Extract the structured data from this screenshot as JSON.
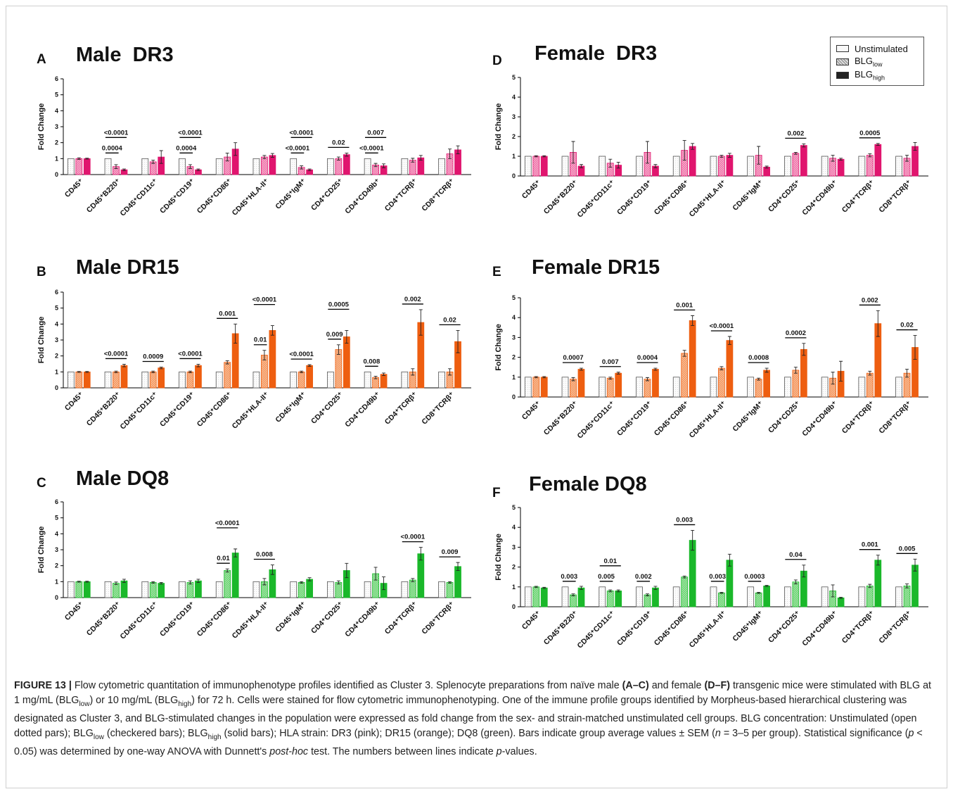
{
  "colors": {
    "pink": "#e0156e",
    "orange": "#ee5e10",
    "green": "#1ab82a"
  },
  "legend": {
    "unstimulated": "Unstimulated",
    "low_main": "BLG",
    "low_sub": "low",
    "high_main": "BLG",
    "high_sub": "high"
  },
  "categories": [
    "CD45⁺",
    "CD45⁺B220⁺",
    "CD45⁺CD11c⁺",
    "CD45⁺CD19⁺",
    "CD45⁺CD86⁺",
    "CD45⁺HLA-II⁺",
    "CD45⁺IgM⁺",
    "CD4⁺CD25⁺",
    "CD4⁺CD49b⁺",
    "CD4⁺TCRβ⁺",
    "CD8⁺TCRβ⁺"
  ],
  "chart_data": [
    {
      "panel": "A",
      "title": "Male  DR3",
      "type": "bar",
      "color": "pink",
      "ylabel": "Fold Change",
      "ylim": [
        0,
        6
      ],
      "yticks": [
        0,
        1,
        2,
        3,
        4,
        5,
        6
      ],
      "series": [
        {
          "name": "Unstimulated",
          "values": [
            1,
            1,
            1,
            1,
            1,
            1,
            1,
            1,
            1,
            1,
            1
          ],
          "errors": [
            0,
            0,
            0,
            0,
            0,
            0,
            0,
            0,
            0,
            0,
            0
          ]
        },
        {
          "name": "BLGlow",
          "values": [
            1.0,
            0.5,
            0.8,
            0.5,
            1.1,
            1.1,
            0.45,
            1.0,
            0.6,
            0.9,
            1.3
          ],
          "errors": [
            0.05,
            0.12,
            0.1,
            0.12,
            0.25,
            0.1,
            0.1,
            0.1,
            0.1,
            0.12,
            0.3
          ]
        },
        {
          "name": "BLGhigh",
          "values": [
            1.0,
            0.3,
            1.1,
            0.3,
            1.6,
            1.2,
            0.3,
            1.25,
            0.55,
            1.05,
            1.55
          ],
          "errors": [
            0.03,
            0.05,
            0.4,
            0.05,
            0.4,
            0.12,
            0.05,
            0.1,
            0.12,
            0.15,
            0.25
          ]
        }
      ],
      "annotations": [
        {
          "cat": 1,
          "from": 0,
          "to": 1,
          "level": 0,
          "label": "0.0004"
        },
        {
          "cat": 1,
          "from": 0,
          "to": 2,
          "level": 1,
          "label": "<0.0001"
        },
        {
          "cat": 3,
          "from": 0,
          "to": 1,
          "level": 0,
          "label": "0.0004"
        },
        {
          "cat": 3,
          "from": 0,
          "to": 2,
          "level": 1,
          "label": "<0.0001"
        },
        {
          "cat": 6,
          "from": 0,
          "to": 1,
          "level": 0,
          "label": "<0.0001"
        },
        {
          "cat": 6,
          "from": 0,
          "to": 2,
          "level": 1,
          "label": "<0.0001"
        },
        {
          "cat": 7,
          "from": 0,
          "to": 2,
          "level": 0,
          "label": "0.02"
        },
        {
          "cat": 8,
          "from": 0,
          "to": 1,
          "level": 0,
          "label": "<0.0001"
        },
        {
          "cat": 8,
          "from": 0,
          "to": 2,
          "level": 1,
          "label": "0.007"
        }
      ]
    },
    {
      "panel": "B",
      "title": "Male DR15",
      "type": "bar",
      "color": "orange",
      "ylabel": "Fold Change",
      "ylim": [
        0,
        6
      ],
      "yticks": [
        0,
        1,
        2,
        3,
        4,
        5,
        6
      ],
      "series": [
        {
          "name": "Unstimulated",
          "values": [
            1,
            1,
            1,
            1,
            1,
            1,
            1,
            1,
            1,
            1,
            1
          ],
          "errors": [
            0,
            0,
            0,
            0,
            0,
            0,
            0,
            0,
            0,
            0,
            0
          ]
        },
        {
          "name": "BLGlow",
          "values": [
            1.0,
            1.0,
            1.0,
            1.0,
            1.6,
            2.05,
            1.0,
            2.4,
            0.65,
            1.0,
            1.0
          ],
          "errors": [
            0.03,
            0.05,
            0.05,
            0.05,
            0.1,
            0.3,
            0.05,
            0.3,
            0.08,
            0.2,
            0.2
          ]
        },
        {
          "name": "BLGhigh",
          "values": [
            1.0,
            1.4,
            1.25,
            1.4,
            3.4,
            3.6,
            1.4,
            3.2,
            0.85,
            4.1,
            2.9
          ],
          "errors": [
            0.03,
            0.08,
            0.05,
            0.08,
            0.6,
            0.3,
            0.05,
            0.4,
            0.08,
            0.8,
            0.7
          ]
        }
      ],
      "annotations": [
        {
          "cat": 1,
          "from": 0,
          "to": 2,
          "level": 0,
          "label": "<0.0001"
        },
        {
          "cat": 2,
          "from": 0,
          "to": 2,
          "level": 0,
          "label": "0.0009"
        },
        {
          "cat": 3,
          "from": 0,
          "to": 2,
          "level": 0,
          "label": "<0.0001"
        },
        {
          "cat": 4,
          "from": 0,
          "to": 2,
          "level": 0,
          "label": "0.001"
        },
        {
          "cat": 5,
          "from": 0,
          "to": 1,
          "level": 0,
          "label": "0.01"
        },
        {
          "cat": 5,
          "from": 0,
          "to": 2,
          "level": 1,
          "label": "<0.0001"
        },
        {
          "cat": 6,
          "from": 0,
          "to": 2,
          "level": 0,
          "label": "<0.0001"
        },
        {
          "cat": 7,
          "from": 0,
          "to": 1,
          "level": 0,
          "label": "0.009"
        },
        {
          "cat": 7,
          "from": 0,
          "to": 2,
          "level": 1,
          "label": "0.0005"
        },
        {
          "cat": 8,
          "from": 0,
          "to": 1,
          "level": 0,
          "label": "0.008"
        },
        {
          "cat": 9,
          "from": 0,
          "to": 2,
          "level": 0,
          "label": "0.002"
        },
        {
          "cat": 10,
          "from": 0,
          "to": 2,
          "level": 0,
          "label": "0.02"
        }
      ]
    },
    {
      "panel": "C",
      "title": "Male DQ8",
      "type": "bar",
      "color": "green",
      "ylabel": "Fold Change",
      "ylim": [
        0,
        6
      ],
      "yticks": [
        0,
        1,
        2,
        3,
        4,
        5,
        6
      ],
      "series": [
        {
          "name": "Unstimulated",
          "values": [
            1,
            1,
            1,
            1,
            1,
            1,
            1,
            1,
            1,
            1,
            1
          ],
          "errors": [
            0,
            0,
            0,
            0,
            0,
            0,
            0,
            0,
            0,
            0,
            0
          ]
        },
        {
          "name": "BLGlow",
          "values": [
            1.0,
            0.9,
            0.95,
            0.95,
            1.7,
            1.0,
            0.95,
            0.95,
            1.5,
            1.1,
            0.95
          ],
          "errors": [
            0.03,
            0.08,
            0.05,
            0.1,
            0.1,
            0.2,
            0.05,
            0.1,
            0.4,
            0.1,
            0.05
          ]
        },
        {
          "name": "BLGhigh",
          "values": [
            1.0,
            1.05,
            0.9,
            1.05,
            2.8,
            1.75,
            1.15,
            1.7,
            0.9,
            2.75,
            1.95
          ],
          "errors": [
            0.03,
            0.1,
            0.05,
            0.1,
            0.25,
            0.3,
            0.1,
            0.45,
            0.4,
            0.4,
            0.25
          ]
        }
      ],
      "annotations": [
        {
          "cat": 4,
          "from": 0,
          "to": 1,
          "level": 0,
          "label": "0.01"
        },
        {
          "cat": 4,
          "from": 0,
          "to": 2,
          "level": 1,
          "label": "<0.0001"
        },
        {
          "cat": 5,
          "from": 0,
          "to": 2,
          "level": 0,
          "label": "0.008"
        },
        {
          "cat": 9,
          "from": 0,
          "to": 2,
          "level": 0,
          "label": "<0.0001"
        },
        {
          "cat": 10,
          "from": 0,
          "to": 2,
          "level": 0,
          "label": "0.009"
        }
      ]
    },
    {
      "panel": "D",
      "title": "Female  DR3",
      "type": "bar",
      "color": "pink",
      "ylabel": "Fold Change",
      "ylim": [
        0,
        5
      ],
      "yticks": [
        0,
        1,
        2,
        3,
        4,
        5
      ],
      "series": [
        {
          "name": "Unstimulated",
          "values": [
            1,
            1,
            1,
            1,
            1,
            1,
            1,
            1,
            1,
            1,
            1
          ],
          "errors": [
            0,
            0,
            0,
            0,
            0,
            0,
            0,
            0,
            0,
            0,
            0
          ]
        },
        {
          "name": "BLGlow",
          "values": [
            1.0,
            1.2,
            0.65,
            1.2,
            1.3,
            1.0,
            1.05,
            1.15,
            0.9,
            1.05,
            0.9
          ],
          "errors": [
            0.03,
            0.55,
            0.2,
            0.55,
            0.5,
            0.05,
            0.45,
            0.05,
            0.15,
            0.08,
            0.15
          ]
        },
        {
          "name": "BLGhigh",
          "values": [
            1.0,
            0.5,
            0.55,
            0.5,
            1.5,
            1.05,
            0.45,
            1.55,
            0.85,
            1.6,
            1.5
          ],
          "errors": [
            0.03,
            0.08,
            0.15,
            0.08,
            0.15,
            0.1,
            0.05,
            0.08,
            0.05,
            0.05,
            0.2
          ]
        }
      ],
      "annotations": [
        {
          "cat": 7,
          "from": 0,
          "to": 2,
          "level": 0,
          "label": "0.002"
        },
        {
          "cat": 9,
          "from": 0,
          "to": 2,
          "level": 0,
          "label": "0.0005"
        }
      ]
    },
    {
      "panel": "E",
      "title": "Female DR15",
      "type": "bar",
      "color": "orange",
      "ylabel": "Fold Change",
      "ylim": [
        0,
        5
      ],
      "yticks": [
        0,
        1,
        2,
        3,
        4,
        5
      ],
      "series": [
        {
          "name": "Unstimulated",
          "values": [
            1,
            1,
            1,
            1,
            1,
            1,
            1,
            1,
            1,
            1,
            1
          ],
          "errors": [
            0,
            0,
            0,
            0,
            0,
            0,
            0,
            0,
            0,
            0,
            0
          ]
        },
        {
          "name": "BLGlow",
          "values": [
            1.0,
            0.9,
            0.95,
            0.9,
            2.2,
            1.45,
            0.9,
            1.35,
            0.95,
            1.2,
            1.2
          ],
          "errors": [
            0.03,
            0.08,
            0.05,
            0.08,
            0.15,
            0.08,
            0.05,
            0.15,
            0.3,
            0.1,
            0.2
          ]
        },
        {
          "name": "BLGhigh",
          "values": [
            1.0,
            1.4,
            1.2,
            1.4,
            3.85,
            2.85,
            1.35,
            2.4,
            1.3,
            3.7,
            2.5
          ],
          "errors": [
            0.03,
            0.05,
            0.05,
            0.05,
            0.25,
            0.2,
            0.1,
            0.3,
            0.5,
            0.65,
            0.6
          ]
        }
      ],
      "annotations": [
        {
          "cat": 1,
          "from": 0,
          "to": 2,
          "level": 0,
          "label": "0.0007"
        },
        {
          "cat": 2,
          "from": 0,
          "to": 2,
          "level": 0,
          "label": "0.007"
        },
        {
          "cat": 3,
          "from": 0,
          "to": 2,
          "level": 0,
          "label": "0.0004"
        },
        {
          "cat": 4,
          "from": 0,
          "to": 2,
          "level": 0,
          "label": "0.001"
        },
        {
          "cat": 5,
          "from": 0,
          "to": 2,
          "level": 0,
          "label": "<0.0001"
        },
        {
          "cat": 6,
          "from": 0,
          "to": 2,
          "level": 0,
          "label": "0.0008"
        },
        {
          "cat": 7,
          "from": 0,
          "to": 2,
          "level": 0,
          "label": "0.0002"
        },
        {
          "cat": 9,
          "from": 0,
          "to": 2,
          "level": 0,
          "label": "0.002"
        },
        {
          "cat": 10,
          "from": 0,
          "to": 2,
          "level": 0,
          "label": "0.02"
        }
      ]
    },
    {
      "panel": "F",
      "title": "Female DQ8",
      "type": "bar",
      "color": "green",
      "ylabel": "Fold Change",
      "ylim": [
        0,
        5
      ],
      "yticks": [
        0,
        1,
        2,
        3,
        4,
        5
      ],
      "series": [
        {
          "name": "Unstimulated",
          "values": [
            1,
            1,
            1,
            1,
            1,
            1,
            1,
            1,
            1,
            1,
            1
          ],
          "errors": [
            0,
            0,
            0,
            0,
            0,
            0,
            0,
            0,
            0,
            0,
            0
          ]
        },
        {
          "name": "BLGlow",
          "values": [
            1.0,
            0.6,
            0.8,
            0.6,
            1.5,
            0.7,
            0.7,
            1.25,
            0.8,
            1.05,
            1.05
          ],
          "errors": [
            0.03,
            0.05,
            0.05,
            0.05,
            0.05,
            0.03,
            0.03,
            0.1,
            0.3,
            0.08,
            0.1
          ]
        },
        {
          "name": "BLGhigh",
          "values": [
            0.95,
            0.95,
            0.8,
            0.95,
            3.35,
            2.35,
            1.05,
            1.8,
            0.45,
            2.35,
            2.1
          ],
          "errors": [
            0.03,
            0.08,
            0.05,
            0.08,
            0.5,
            0.3,
            0.03,
            0.3,
            0.03,
            0.25,
            0.3
          ]
        }
      ],
      "annotations": [
        {
          "cat": 1,
          "from": 0,
          "to": 1,
          "level": 0,
          "label": "0.003"
        },
        {
          "cat": 2,
          "from": 0,
          "to": 1,
          "level": 0,
          "label": "0.005"
        },
        {
          "cat": 2,
          "from": 0,
          "to": 2,
          "level": 1,
          "label": "0.01"
        },
        {
          "cat": 3,
          "from": 0,
          "to": 1,
          "level": 0,
          "label": "0.002"
        },
        {
          "cat": 4,
          "from": 0,
          "to": 2,
          "level": 0,
          "label": "0.003"
        },
        {
          "cat": 5,
          "from": 0,
          "to": 1,
          "level": 0,
          "label": "0.003"
        },
        {
          "cat": 6,
          "from": 0,
          "to": 1,
          "level": 0,
          "label": "0.0003"
        },
        {
          "cat": 7,
          "from": 0,
          "to": 2,
          "level": 0,
          "label": "0.04"
        },
        {
          "cat": 9,
          "from": 0,
          "to": 2,
          "level": 0,
          "label": "0.001"
        },
        {
          "cat": 10,
          "from": 0,
          "to": 2,
          "level": 0,
          "label": "0.005"
        }
      ]
    }
  ],
  "caption": {
    "fig": "FIGURE 13 |",
    "t1": " Flow cytometric quantitation of immunophenotype profiles identified as Cluster 3. Splenocyte preparations from naïve male ",
    "b1": "(A–C)",
    "t2": " and female ",
    "b2": "(D–F)",
    "t3": " transgenic mice were stimulated with BLG at 1 mg/mL (BLG",
    "s1": "low",
    "t4": ") or 10 mg/mL (BLG",
    "s2": "high",
    "t5": ") for 72 h. Cells were stained for flow cytometric immunophenotyping. One of the immune profile groups identified by Morpheus-based hierarchical clustering was designated as Cluster 3, and BLG-stimulated changes in the population were expressed as fold change from the sex- and strain-matched unstimulated cell groups. BLG concentration: Unstimulated (open dotted pars); BLG",
    "s3": "low",
    "t6": " (checkered bars); BLG",
    "s4": "high",
    "t7": " (solid bars); HLA strain: DR3 (pink); DR15 (orange); DQ8 (green). Bars indicate group average values ± SEM (",
    "i1": "n",
    "t8": " = 3–5 per group). Statistical significance (",
    "i2": "p",
    "t9": " < 0.05) was determined by one-way ANOVA with Dunnett's ",
    "i3": "post-hoc",
    "t10": " test. The numbers between lines indicate ",
    "i4": "p",
    "t11": "-values."
  }
}
